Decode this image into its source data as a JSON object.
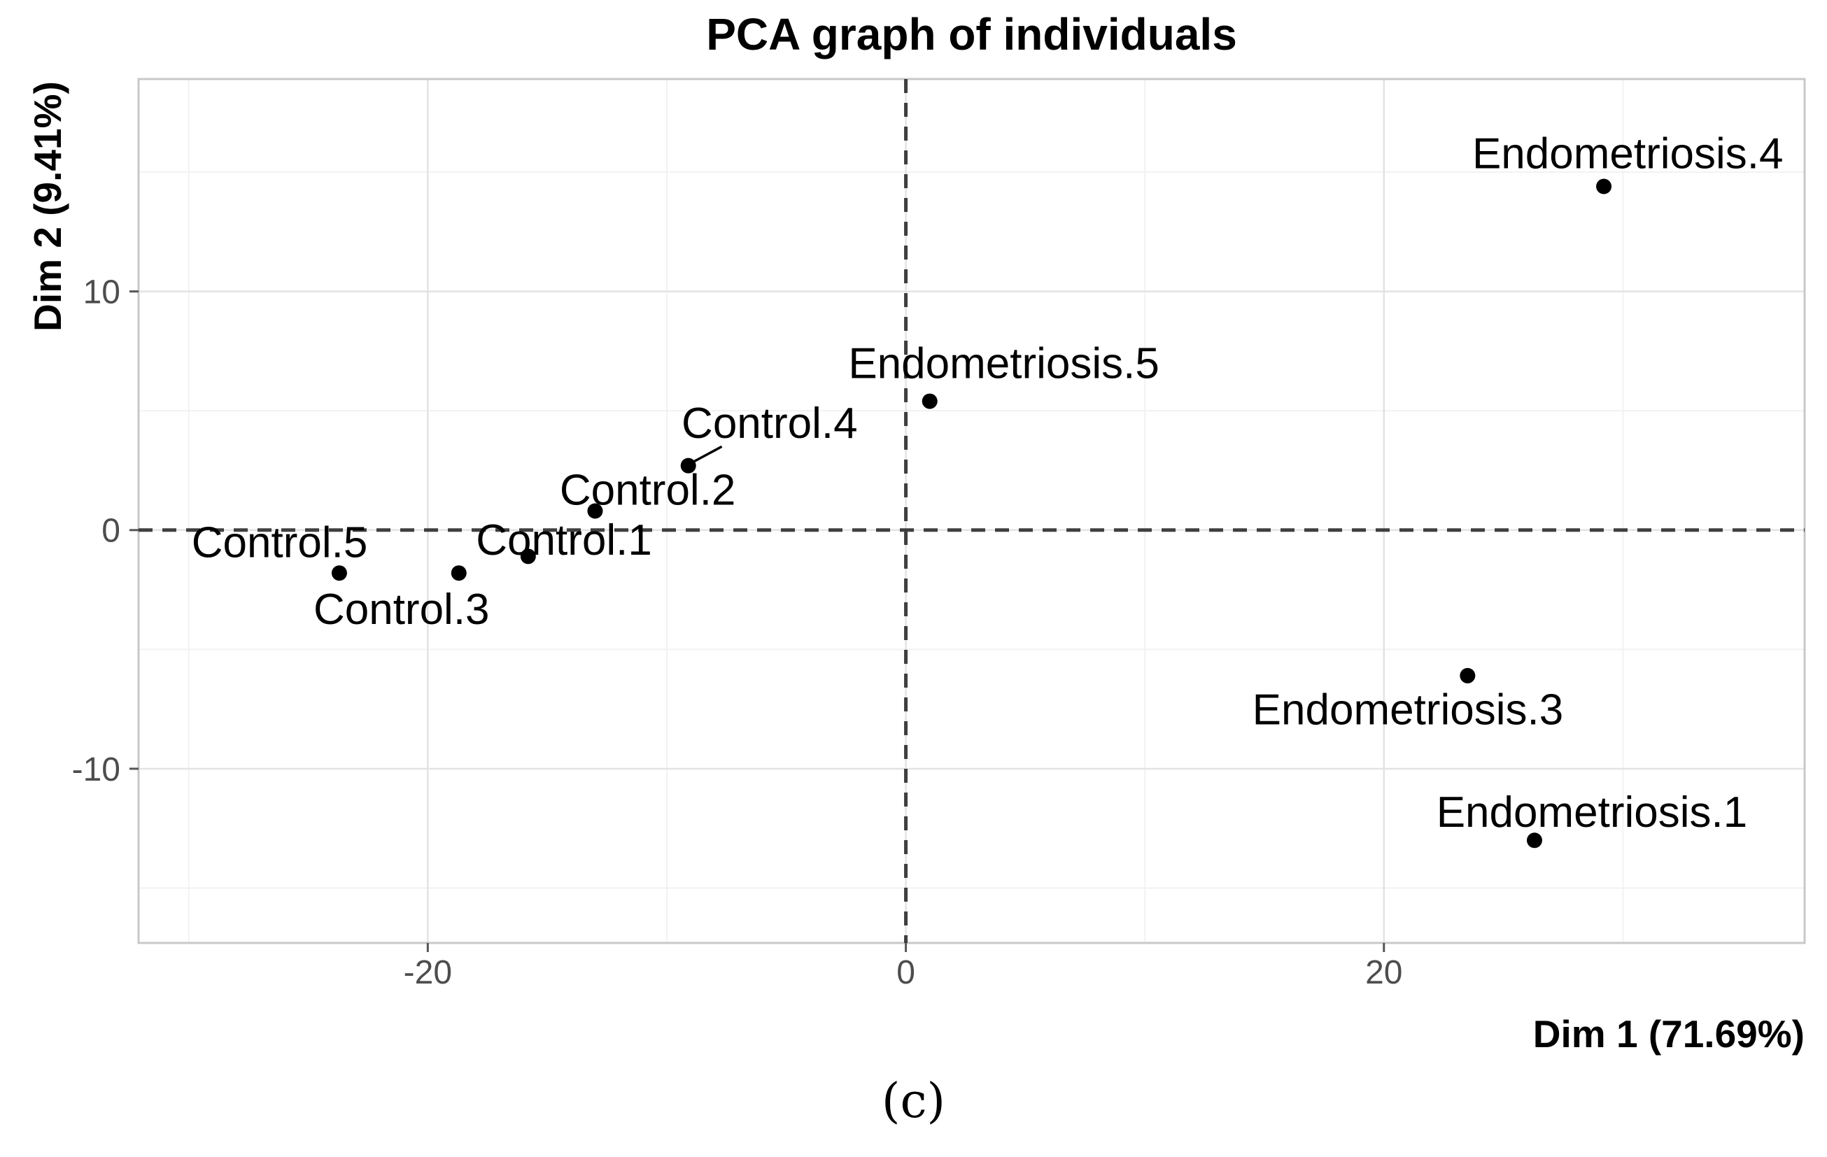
{
  "figure": {
    "title": "PCA graph of individuals",
    "x_axis_title": "Dim 1 (71.69%)",
    "y_axis_title": "Dim 2 (9.41%)",
    "caption": "(c)"
  },
  "colors": {
    "point": "#000000",
    "point_label": "#000000",
    "tick_label": "#4d4d4d",
    "tick_mark": "#555555",
    "grid_major": "#e3e3e3",
    "grid_minor": "#f2f2f2",
    "panel_border": "#c8c8c8",
    "reference_line": "#3f3f3f",
    "background": "#ffffff"
  },
  "chart_data": {
    "type": "scatter",
    "title": "PCA graph of individuals",
    "xlabel": "Dim 1 (71.69%)",
    "ylabel": "Dim 2 (9.41%)",
    "xlim": [
      -32.1,
      37.6
    ],
    "ylim": [
      -17.3,
      18.9
    ],
    "x_ticks": [
      -20,
      0,
      20
    ],
    "y_ticks": [
      -10,
      0,
      10
    ],
    "x_minor_grid": [
      -30,
      -10,
      10,
      30
    ],
    "y_minor_grid": [
      -15,
      -5,
      5,
      15
    ],
    "grid": "on",
    "legend": "none",
    "reference_lines": [
      {
        "axis": "vertical",
        "value": 0,
        "style": "dashed"
      },
      {
        "axis": "horizontal",
        "value": 0,
        "style": "dashed"
      }
    ],
    "series": [
      {
        "name": "individuals",
        "points": [
          {
            "label": "Control.1",
            "x": -15.8,
            "y": -1.1,
            "label_anchor": {
              "x": -14.3,
              "y": -0.4
            }
          },
          {
            "label": "Control.2",
            "x": -13.0,
            "y": 0.8,
            "label_anchor": {
              "x": -10.8,
              "y": 1.7
            }
          },
          {
            "label": "Control.3",
            "x": -18.7,
            "y": -1.8,
            "label_anchor": {
              "x": -21.1,
              "y": -3.3
            }
          },
          {
            "label": "Control.4",
            "x": -9.1,
            "y": 2.7,
            "label_anchor": {
              "x": -5.7,
              "y": 4.5
            },
            "leader": {
              "x1": -9.0,
              "y1": 2.8,
              "x2": -7.7,
              "y2": 3.5
            }
          },
          {
            "label": "Control.5",
            "x": -23.7,
            "y": -1.8,
            "label_anchor": {
              "x": -26.2,
              "y": -0.5
            }
          },
          {
            "label": "Endometriosis.1",
            "x": 26.3,
            "y": -13.0,
            "label_anchor": {
              "x": 28.7,
              "y": -11.8
            }
          },
          {
            "label": "Endometriosis.3",
            "x": 23.5,
            "y": -6.1,
            "label_anchor": {
              "x": 21.0,
              "y": -7.5
            }
          },
          {
            "label": "Endometriosis.4",
            "x": 29.2,
            "y": 14.4,
            "label_anchor": {
              "x": 30.2,
              "y": 15.8
            }
          },
          {
            "label": "Endometriosis.5",
            "x": 1.0,
            "y": 5.4,
            "label_anchor": {
              "x": 4.1,
              "y": 7.0
            }
          }
        ]
      }
    ]
  }
}
